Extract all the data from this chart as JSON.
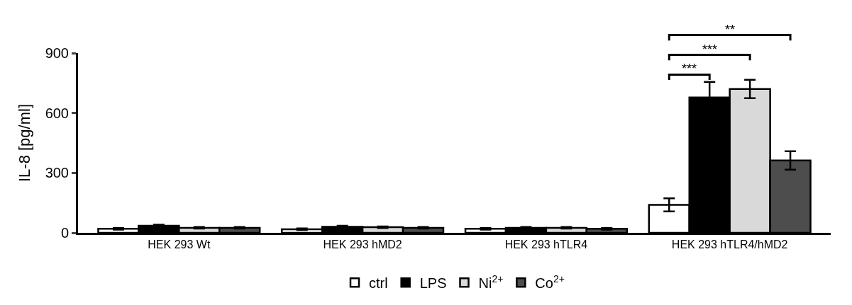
{
  "chart_data": {
    "type": "bar",
    "ylabel": "IL-8 [pg/ml]",
    "categories": [
      "HEK 293 Wt",
      "HEK 293 hMD2",
      "HEK 293 hTLR4",
      "HEK 293 hTLR4/hMD2"
    ],
    "series": [
      {
        "name": "ctrl",
        "color": "#ffffff",
        "values": [
          20,
          18,
          20,
          140
        ],
        "errors": [
          4,
          4,
          4,
          33
        ]
      },
      {
        "name": "LPS",
        "color": "#000000",
        "values": [
          35,
          30,
          25,
          678
        ],
        "errors": [
          6,
          5,
          4,
          78
        ]
      },
      {
        "name": "Ni$^{2+}$",
        "color": "#d9d9d9",
        "values": [
          25,
          28,
          25,
          720
        ],
        "errors": [
          4,
          4,
          4,
          46
        ]
      },
      {
        "name": "Co$^{2+}$",
        "color": "#4d4d4d",
        "values": [
          25,
          25,
          20,
          362
        ],
        "errors": [
          4,
          4,
          4,
          46
        ]
      }
    ],
    "ylim": [
      0,
      900
    ],
    "yticks": [
      0,
      300,
      600,
      900
    ],
    "legend": "bottom",
    "annotations": [
      "***",
      "***",
      "**"
    ]
  }
}
